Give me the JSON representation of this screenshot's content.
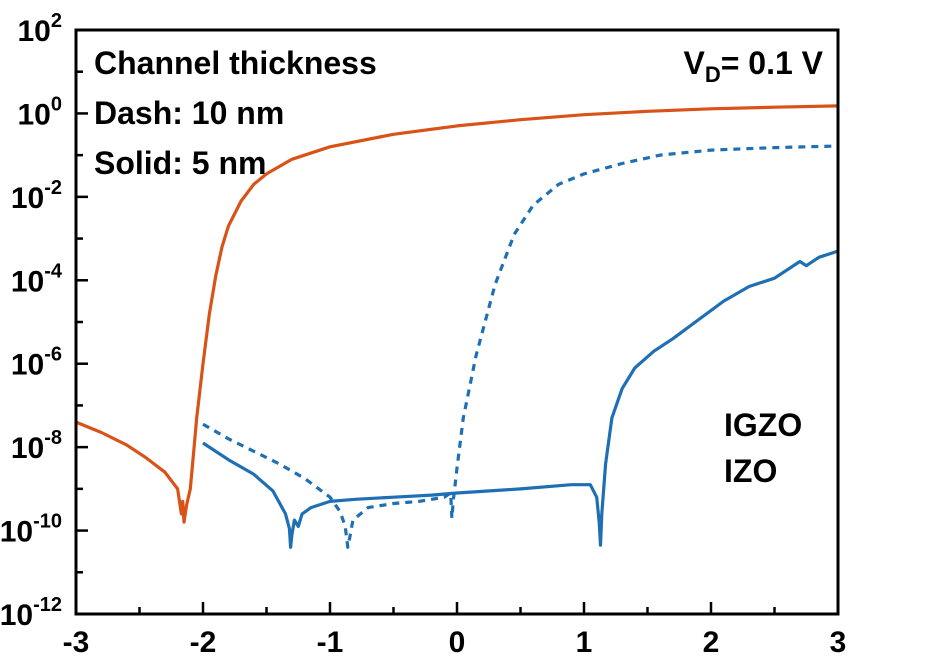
{
  "chart_data": {
    "type": "line",
    "title": "",
    "xlabel": "",
    "ylabel": "",
    "xlim": [
      -3,
      3
    ],
    "ylim_log10": [
      -12,
      2
    ],
    "y_scale": "log",
    "grid": false,
    "x_tick_labels": [
      "-3",
      "-2",
      "-1",
      "0",
      "1",
      "2",
      "3"
    ],
    "x_tick_values": [
      -3,
      -2,
      -1,
      0,
      1,
      2,
      3
    ],
    "y_ticks": [
      {
        "log10": 2,
        "base": "10",
        "exp": "2"
      },
      {
        "log10": 0,
        "base": "10",
        "exp": "0"
      },
      {
        "log10": -2,
        "base": "10",
        "exp": "-2"
      },
      {
        "log10": -4,
        "base": "10",
        "exp": "-4"
      },
      {
        "log10": -6,
        "base": "10",
        "exp": "-6"
      },
      {
        "log10": -8,
        "base": "10",
        "exp": "-8"
      },
      {
        "log10": -10,
        "base": "10",
        "exp": "-10"
      },
      {
        "log10": -12,
        "base": "10",
        "exp": "-12"
      }
    ],
    "annotations": {
      "line1": "Channel thickness",
      "line2": "Dash: 10 nm",
      "line3": "Solid: 5 nm",
      "vd_prefix": "V",
      "vd_sub": "D",
      "vd_suffix": "= 0.1 V",
      "legend_igzo": "IGZO",
      "legend_izo": "IZO"
    },
    "colors": {
      "igzo": "#1f6fb4",
      "izo": "#d95319"
    },
    "series": [
      {
        "key": "izo_solid",
        "style": "solid",
        "color": "#d95319",
        "log10": [
          [
            -3.0,
            -7.4
          ],
          [
            -2.8,
            -7.65
          ],
          [
            -2.6,
            -7.95
          ],
          [
            -2.45,
            -8.25
          ],
          [
            -2.3,
            -8.6
          ],
          [
            -2.2,
            -9.0
          ],
          [
            -2.17,
            -9.6
          ],
          [
            -2.16,
            -9.3
          ],
          [
            -2.15,
            -9.8
          ],
          [
            -2.13,
            -9.4
          ],
          [
            -2.1,
            -9.0
          ],
          [
            -2.07,
            -8.0
          ],
          [
            -2.05,
            -7.3
          ],
          [
            -2.0,
            -6.0
          ],
          [
            -1.95,
            -4.8
          ],
          [
            -1.9,
            -3.9
          ],
          [
            -1.85,
            -3.2
          ],
          [
            -1.8,
            -2.7
          ],
          [
            -1.7,
            -2.1
          ],
          [
            -1.6,
            -1.7
          ],
          [
            -1.5,
            -1.45
          ],
          [
            -1.3,
            -1.1
          ],
          [
            -1.0,
            -0.8
          ],
          [
            -0.5,
            -0.5
          ],
          [
            0.0,
            -0.3
          ],
          [
            0.5,
            -0.15
          ],
          [
            1.0,
            -0.03
          ],
          [
            1.5,
            0.05
          ],
          [
            2.0,
            0.11
          ],
          [
            2.5,
            0.15
          ],
          [
            3.0,
            0.18
          ]
        ]
      },
      {
        "key": "igzo_dash_10nm",
        "style": "dash",
        "color": "#1f6fb4",
        "log10": [
          [
            -2.0,
            -7.45
          ],
          [
            -1.8,
            -7.8
          ],
          [
            -1.6,
            -8.1
          ],
          [
            -1.4,
            -8.4
          ],
          [
            -1.2,
            -8.75
          ],
          [
            -1.0,
            -9.2
          ],
          [
            -0.92,
            -9.55
          ],
          [
            -0.88,
            -9.9
          ],
          [
            -0.86,
            -10.4
          ],
          [
            -0.84,
            -10.1
          ],
          [
            -0.82,
            -9.75
          ],
          [
            -0.7,
            -9.45
          ],
          [
            -0.5,
            -9.35
          ],
          [
            -0.3,
            -9.3
          ],
          [
            -0.1,
            -9.2
          ],
          [
            -0.05,
            -9.1
          ],
          [
            -0.04,
            -9.7
          ],
          [
            -0.03,
            -9.3
          ],
          [
            0.0,
            -8.5
          ],
          [
            0.05,
            -7.3
          ],
          [
            0.15,
            -5.8
          ],
          [
            0.3,
            -4.1
          ],
          [
            0.45,
            -2.9
          ],
          [
            0.6,
            -2.2
          ],
          [
            0.8,
            -1.7
          ],
          [
            1.0,
            -1.45
          ],
          [
            1.3,
            -1.2
          ],
          [
            1.6,
            -1.0
          ],
          [
            2.0,
            -0.88
          ],
          [
            2.5,
            -0.82
          ],
          [
            3.0,
            -0.78
          ]
        ]
      },
      {
        "key": "igzo_solid_5nm",
        "style": "solid",
        "color": "#1f6fb4",
        "log10": [
          [
            -2.0,
            -7.9
          ],
          [
            -1.8,
            -8.3
          ],
          [
            -1.6,
            -8.65
          ],
          [
            -1.45,
            -9.05
          ],
          [
            -1.35,
            -9.6
          ],
          [
            -1.32,
            -9.95
          ],
          [
            -1.31,
            -10.4
          ],
          [
            -1.3,
            -10.1
          ],
          [
            -1.28,
            -9.75
          ],
          [
            -1.25,
            -9.9
          ],
          [
            -1.22,
            -9.6
          ],
          [
            -1.15,
            -9.45
          ],
          [
            -1.0,
            -9.3
          ],
          [
            -0.8,
            -9.25
          ],
          [
            -0.5,
            -9.2
          ],
          [
            -0.2,
            -9.15
          ],
          [
            0.0,
            -9.1
          ],
          [
            0.5,
            -9.0
          ],
          [
            0.9,
            -8.9
          ],
          [
            1.05,
            -8.9
          ],
          [
            1.1,
            -9.2
          ],
          [
            1.12,
            -9.8
          ],
          [
            1.13,
            -10.35
          ],
          [
            1.14,
            -9.6
          ],
          [
            1.17,
            -8.4
          ],
          [
            1.22,
            -7.3
          ],
          [
            1.3,
            -6.6
          ],
          [
            1.4,
            -6.1
          ],
          [
            1.55,
            -5.7
          ],
          [
            1.7,
            -5.4
          ],
          [
            1.9,
            -4.95
          ],
          [
            2.1,
            -4.5
          ],
          [
            2.3,
            -4.15
          ],
          [
            2.5,
            -3.95
          ],
          [
            2.7,
            -3.55
          ],
          [
            2.75,
            -3.65
          ],
          [
            2.85,
            -3.45
          ],
          [
            3.0,
            -3.3
          ]
        ]
      }
    ]
  }
}
